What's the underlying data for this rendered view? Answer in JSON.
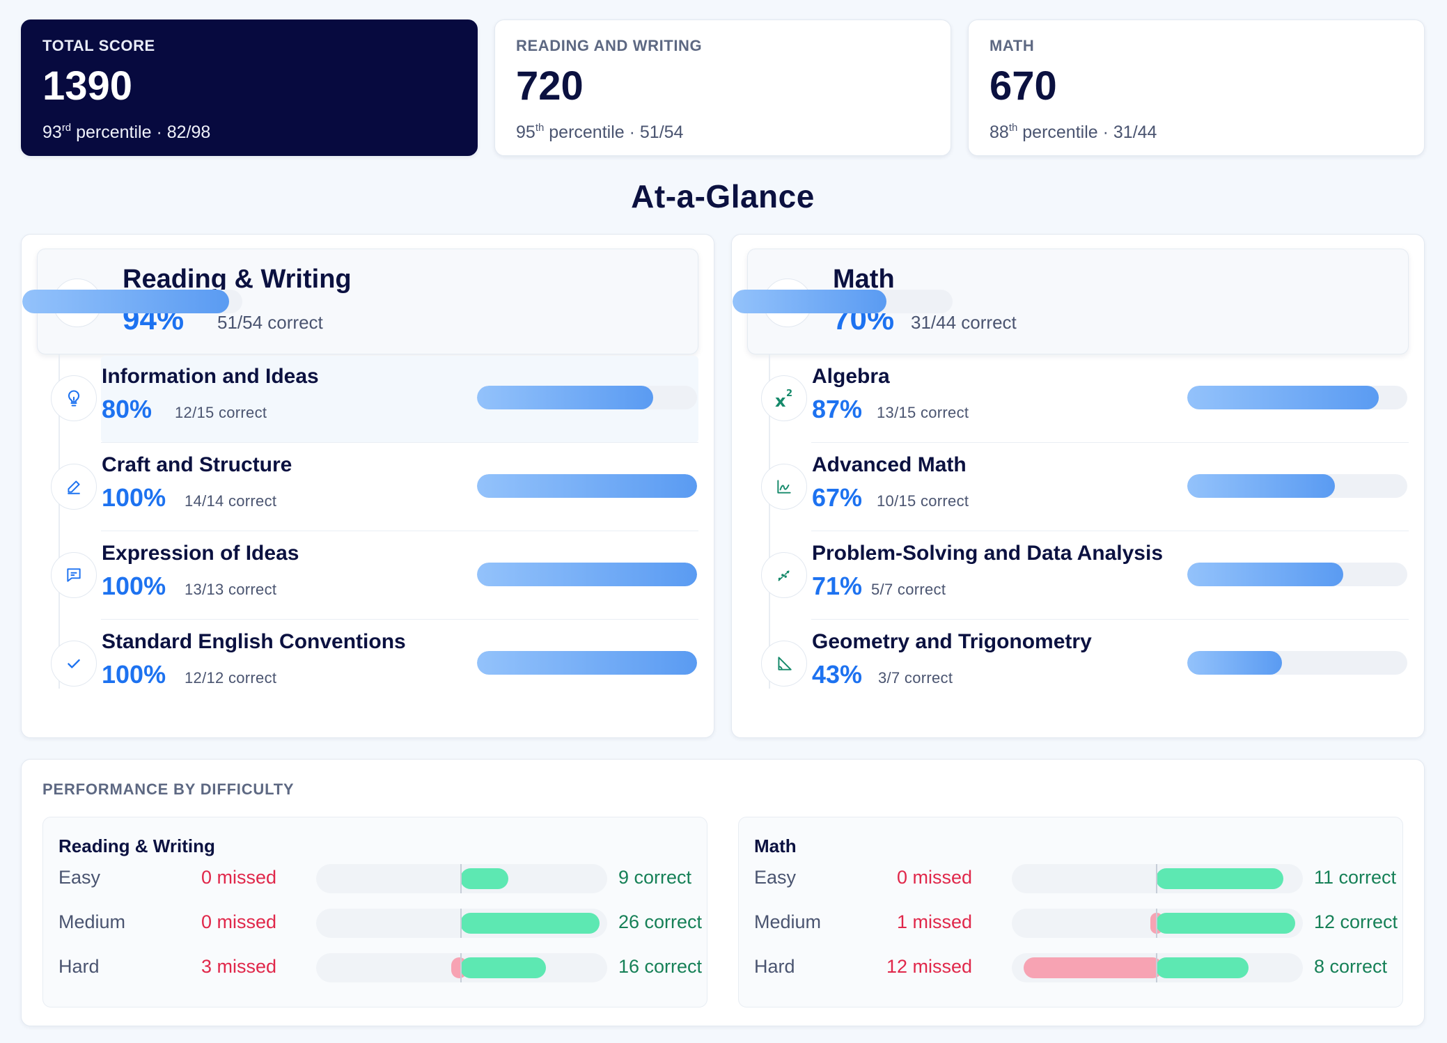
{
  "scores": [
    {
      "label": "TOTAL SCORE",
      "value": "1390",
      "ord_num": "93",
      "ord_suffix": "rd",
      "rest": " percentile · 82/98"
    },
    {
      "label": "READING AND WRITING",
      "value": "720",
      "ord_num": "95",
      "ord_suffix": "th",
      "rest": " percentile · 51/54"
    },
    {
      "label": "MATH",
      "value": "670",
      "ord_num": "88",
      "ord_suffix": "th",
      "rest": " percentile · 31/44"
    }
  ],
  "glance_title": "At-a-Glance",
  "panels": {
    "rw": {
      "title": "Reading & Writing",
      "pct": "94%",
      "count": "51/54 correct",
      "fraction": 0.94,
      "icon": "book-icon",
      "items": [
        {
          "title": "Information and Ideas",
          "pct": "80%",
          "count": "12/15 correct",
          "fraction": 0.8,
          "icon": "lightbulb-icon"
        },
        {
          "title": "Craft and Structure",
          "pct": "100%",
          "count": "14/14 correct",
          "fraction": 1.0,
          "icon": "pencil-icon"
        },
        {
          "title": "Expression of Ideas",
          "pct": "100%",
          "count": "13/13 correct",
          "fraction": 1.0,
          "icon": "message-icon"
        },
        {
          "title": "Standard English Conventions",
          "pct": "100%",
          "count": "12/12 correct",
          "fraction": 1.0,
          "icon": "check-icon"
        }
      ]
    },
    "math": {
      "title": "Math",
      "pct": "70%",
      "count": "31/44 correct",
      "fraction": 0.7,
      "icon": "calculator-icon",
      "items": [
        {
          "title": "Algebra",
          "pct": "87%",
          "count": "13/15 correct",
          "fraction": 0.87,
          "icon": "superscript-icon"
        },
        {
          "title": "Advanced Math",
          "pct": "67%",
          "count": "10/15 correct",
          "fraction": 0.67,
          "icon": "line-chart-icon"
        },
        {
          "title": "Problem-Solving and Data Analysis",
          "pct": "71%",
          "count": "5/7 correct",
          "fraction": 0.71,
          "icon": "scatter-icon"
        },
        {
          "title": "Geometry and Trigonometry",
          "pct": "43%",
          "count": "3/7 correct",
          "fraction": 0.43,
          "icon": "triangle-ruler-icon"
        }
      ]
    }
  },
  "difficulty": {
    "label": "PERFORMANCE BY DIFFICULTY",
    "rw": {
      "title": "Reading & Writing",
      "rows": [
        {
          "level": "Easy",
          "missed": 0,
          "correct": 9,
          "missed_text": "0 missed",
          "correct_text": "9 correct"
        },
        {
          "level": "Medium",
          "missed": 0,
          "correct": 26,
          "missed_text": "0 missed",
          "correct_text": "26 correct"
        },
        {
          "level": "Hard",
          "missed": 3,
          "correct": 16,
          "missed_text": "3 missed",
          "correct_text": "16 correct"
        }
      ]
    },
    "math": {
      "title": "Math",
      "rows": [
        {
          "level": "Easy",
          "missed": 0,
          "correct": 11,
          "missed_text": "0 missed",
          "correct_text": "11 correct"
        },
        {
          "level": "Medium",
          "missed": 1,
          "correct": 12,
          "missed_text": "1 missed",
          "correct_text": "12 correct"
        },
        {
          "level": "Hard",
          "missed": 12,
          "correct": 8,
          "missed_text": "12 missed",
          "correct_text": "8 correct"
        }
      ]
    }
  },
  "colors": {
    "dark_card": "#070a3f",
    "accent_blue": "#1d72f0",
    "correct_green": "#5de8b2",
    "missed_red": "#f7a3b3"
  }
}
